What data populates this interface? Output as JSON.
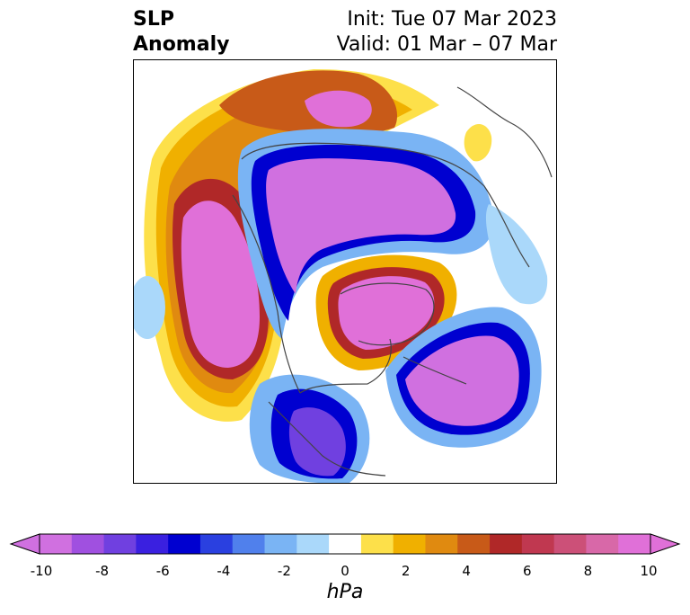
{
  "title": {
    "left_line1": "SLP",
    "left_line2": "Anomaly",
    "right_line1": "Init: Tue 07 Mar 2023",
    "right_line2": "Valid: 01 Mar – 07 Mar"
  },
  "colorbar": {
    "unit": "hPa",
    "tick_labels": [
      "-10",
      "-8",
      "-6",
      "-4",
      "-2",
      "0",
      "2",
      "4",
      "6",
      "8",
      "10"
    ],
    "colors": [
      "#d070e0",
      "#a050e0",
      "#7040e0",
      "#3a20e0",
      "#0000d0",
      "#2a40e0",
      "#5080ec",
      "#7ab4f4",
      "#aad8fa",
      "#ffffff",
      "#fde04a",
      "#f0b000",
      "#e08a10",
      "#c85a18",
      "#b02828",
      "#c03850",
      "#cc5078",
      "#d868a8",
      "#e070d8"
    ]
  },
  "map": {
    "projection": "polar-stereographic",
    "high_anomaly_color": "#e070d8",
    "low_anomaly_color": "#d070e0"
  }
}
